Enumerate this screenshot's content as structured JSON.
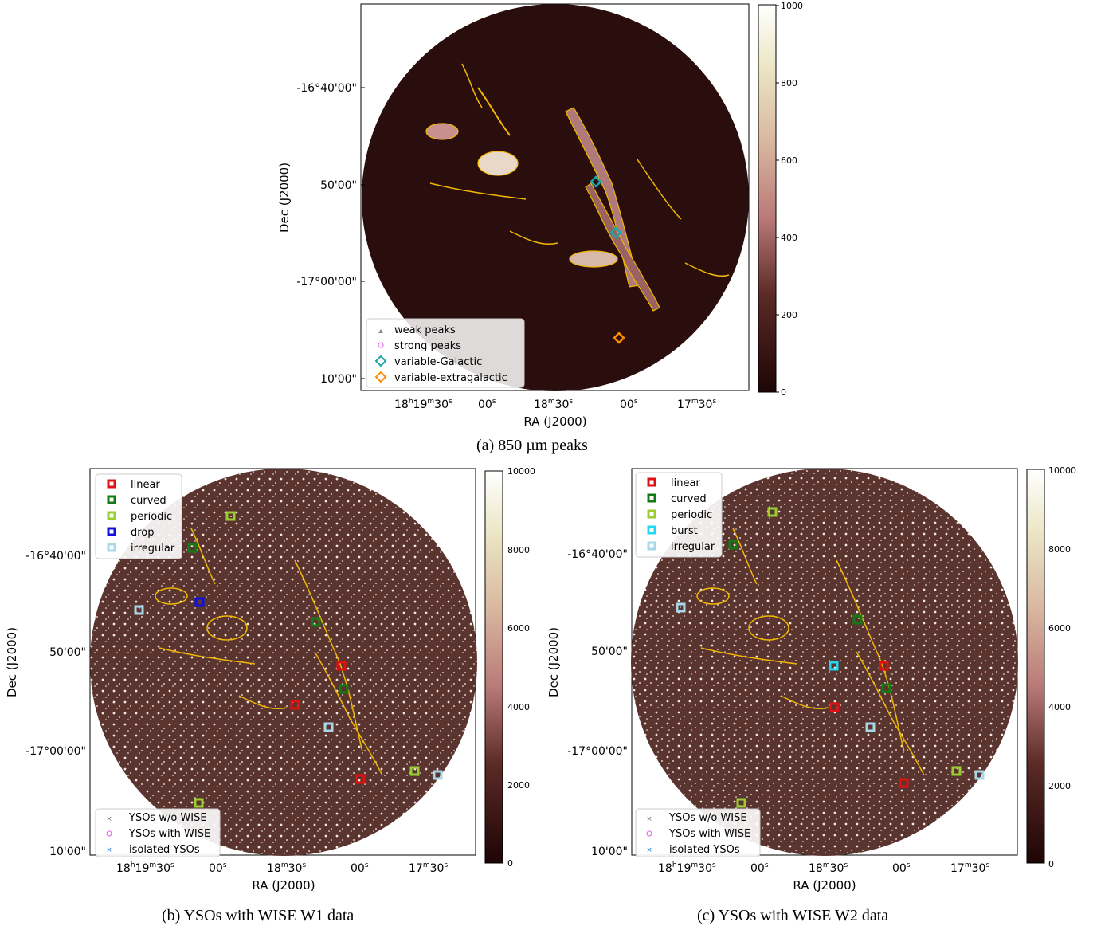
{
  "figure": {
    "panels": [
      {
        "id": "a",
        "caption": "(a) 850 µm peaks",
        "xlabel": "RA (J2000)",
        "ylabel": "Dec (J2000)",
        "ra_ticks": [
          {
            "pre": "18",
            "h": "h",
            "m_val": "19",
            "m": "m",
            "s_val": "30",
            "s": "s"
          },
          {
            "pre": "",
            "h": "",
            "m_val": "",
            "m": "",
            "s_val": "00",
            "s": "s"
          },
          {
            "pre": "18",
            "h": "",
            "m_val": "",
            "m": "m",
            "s_val": "30",
            "s": "s"
          },
          {
            "pre": "",
            "h": "",
            "m_val": "",
            "m": "",
            "s_val": "00",
            "s": "s"
          },
          {
            "pre": "17",
            "h": "",
            "m_val": "",
            "m": "m",
            "s_val": "30",
            "s": "s"
          }
        ],
        "dec_ticks": [
          "-16°40'00\"",
          "50'00\"",
          "-17°00'00\"",
          "10'00\""
        ],
        "colorbar": {
          "ticks": [
            "0",
            "200",
            "400",
            "600",
            "800",
            "1000"
          ],
          "range": [
            0,
            1000
          ]
        },
        "legend": [
          {
            "label": "weak peaks",
            "marker": "triangle",
            "color": "#8a8a8a"
          },
          {
            "label": "strong peaks",
            "marker": "circle",
            "color": "#e05ae0"
          },
          {
            "label": "variable-Galactic",
            "marker": "diamond",
            "color": "#1aa6a6"
          },
          {
            "label": "variable-extragalactic",
            "marker": "diamond",
            "color": "#ff8c00"
          }
        ]
      },
      {
        "id": "b",
        "caption": "(b) YSOs with WISE W1 data",
        "xlabel": "RA (J2000)",
        "ylabel": "Dec (J2000)",
        "dec_ticks": [
          "-16°40'00\"",
          "50'00\"",
          "-17°00'00\"",
          "10'00\""
        ],
        "colorbar": {
          "ticks": [
            "0",
            "2000",
            "4000",
            "6000",
            "8000",
            "10000"
          ],
          "range": [
            0,
            10000
          ]
        },
        "legend_top": [
          {
            "label": "linear",
            "color": "#e01010"
          },
          {
            "label": "curved",
            "color": "#157a15"
          },
          {
            "label": "periodic",
            "color": "#9acd32"
          },
          {
            "label": "drop",
            "color": "#1010e0"
          },
          {
            "label": "irregular",
            "color": "#a8d8e8"
          }
        ],
        "legend_bottom": [
          {
            "label": "YSOs w/o WISE",
            "marker": "x",
            "color": "#707070"
          },
          {
            "label": "YSOs with WISE",
            "marker": "circle",
            "color": "#e05ae0"
          },
          {
            "label": "isolated YSOs",
            "marker": "x",
            "color": "#2080e0"
          }
        ]
      },
      {
        "id": "c",
        "caption": "(c) YSOs with WISE W2 data",
        "xlabel": "RA (J2000)",
        "ylabel": "Dec (J2000)",
        "dec_ticks": [
          "-16°40'00\"",
          "50'00\"",
          "-17°00'00\"",
          "10'00\""
        ],
        "colorbar": {
          "ticks": [
            "0",
            "2000",
            "4000",
            "6000",
            "8000",
            "10000"
          ],
          "range": [
            0,
            10000
          ]
        },
        "legend_top": [
          {
            "label": "linear",
            "color": "#e01010"
          },
          {
            "label": "curved",
            "color": "#157a15"
          },
          {
            "label": "periodic",
            "color": "#9acd32"
          },
          {
            "label": "burst",
            "color": "#20d8f0"
          },
          {
            "label": "irregular",
            "color": "#a8d8e8"
          }
        ],
        "legend_bottom": [
          {
            "label": "YSOs w/o WISE",
            "marker": "x",
            "color": "#707070"
          },
          {
            "label": "YSOs with WISE",
            "marker": "circle",
            "color": "#e05ae0"
          },
          {
            "label": "isolated YSOs",
            "marker": "x",
            "color": "#2080e0"
          }
        ]
      }
    ]
  },
  "colors": {
    "background_dark": "#2a0d0d",
    "contour": "#f0b800",
    "colormap": [
      "#1e0505",
      "#5a2a26",
      "#b97a78",
      "#d9b8a0",
      "#ece8c8",
      "#ffffff"
    ]
  }
}
